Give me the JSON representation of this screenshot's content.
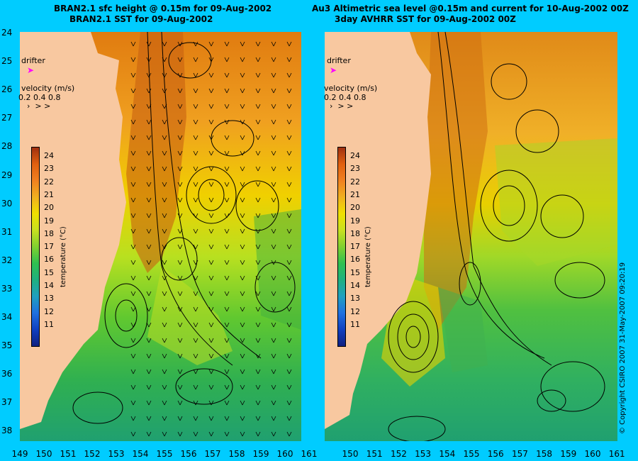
{
  "titles": {
    "left_line1": "BRAN2.1 sfc height @ 0.15m for 09-Aug-2002",
    "left_line2": "BRAN2.1 SST for 09-Aug-2002",
    "right_line1": "Au3 Altimetric sea level  @0.15m and current for 10-Aug-2002 00Z",
    "right_line2": "3day AVHRR SST for 09-Aug-2002 00Z"
  },
  "axes": {
    "lat_labels": [
      "24",
      "25",
      "26",
      "27",
      "28",
      "29",
      "30",
      "31",
      "32",
      "33",
      "34",
      "35",
      "36",
      "37",
      "38"
    ],
    "lon_labels": [
      "149",
      "150",
      "151",
      "152",
      "153",
      "154",
      "155",
      "156",
      "157",
      "158",
      "159",
      "160",
      "161"
    ],
    "lon_labels_right": [
      "150",
      "151",
      "152",
      "153",
      "154",
      "155",
      "156",
      "157",
      "158",
      "159",
      "160",
      "161"
    ]
  },
  "legend": {
    "drifter_label": "drifter",
    "velocity_label": "velocity (m/s)",
    "velocity_values": "0.2 0.4 0.8",
    "colorbar_title": "temperature (°C)",
    "colorbar_ticks": [
      "24",
      "23",
      "22",
      "21",
      "20",
      "19",
      "18",
      "17",
      "16",
      "15",
      "14",
      "13",
      "12",
      "11"
    ],
    "colors": {
      "land": "#f8c8a0",
      "drifter": "#ff00ff",
      "background": "#00ccff"
    }
  },
  "copyright": "© Copyright CSIRO 2007   31-May-2007 09:20:19"
}
